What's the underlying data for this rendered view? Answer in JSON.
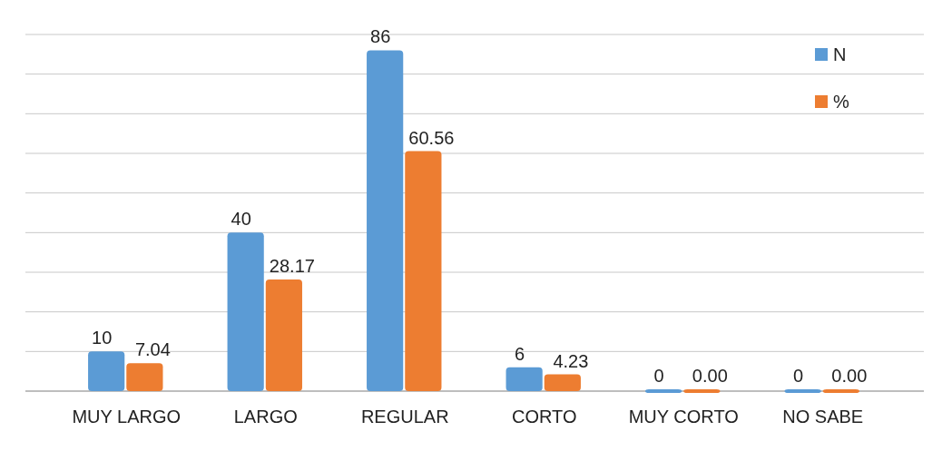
{
  "chart_data": {
    "type": "bar",
    "categories": [
      "MUY LARGO",
      "LARGO",
      "REGULAR",
      "CORTO",
      "MUY CORTO",
      "NO SABE"
    ],
    "series": [
      {
        "name": "N",
        "color": "#5b9bd5",
        "values": [
          10,
          40,
          86,
          6,
          0,
          0
        ],
        "value_labels": [
          "10",
          "40",
          "86",
          "6",
          "0",
          "0"
        ]
      },
      {
        "name": "%",
        "color": "#ed7d31",
        "values": [
          7.04,
          28.17,
          60.56,
          4.23,
          0,
          0
        ],
        "value_labels": [
          "7.04",
          "28.17",
          "60.56",
          "4.23",
          "0.00",
          "0.00"
        ]
      }
    ],
    "ylim": [
      0,
      90
    ],
    "yticks": [
      {
        "value": 0,
        "label": null
      },
      {
        "value": 10,
        "label": null
      },
      {
        "value": 20,
        "label": null
      },
      {
        "value": 30,
        "label": null
      },
      {
        "value": 40,
        "label": null
      },
      {
        "value": 50,
        "label": null
      },
      {
        "value": 60,
        "label": null
      },
      {
        "value": 70,
        "label": null
      },
      {
        "value": 80,
        "label": null
      },
      {
        "value": 90,
        "label": null
      }
    ],
    "grid": "y",
    "legend": "top right",
    "tick_labels": "x"
  }
}
